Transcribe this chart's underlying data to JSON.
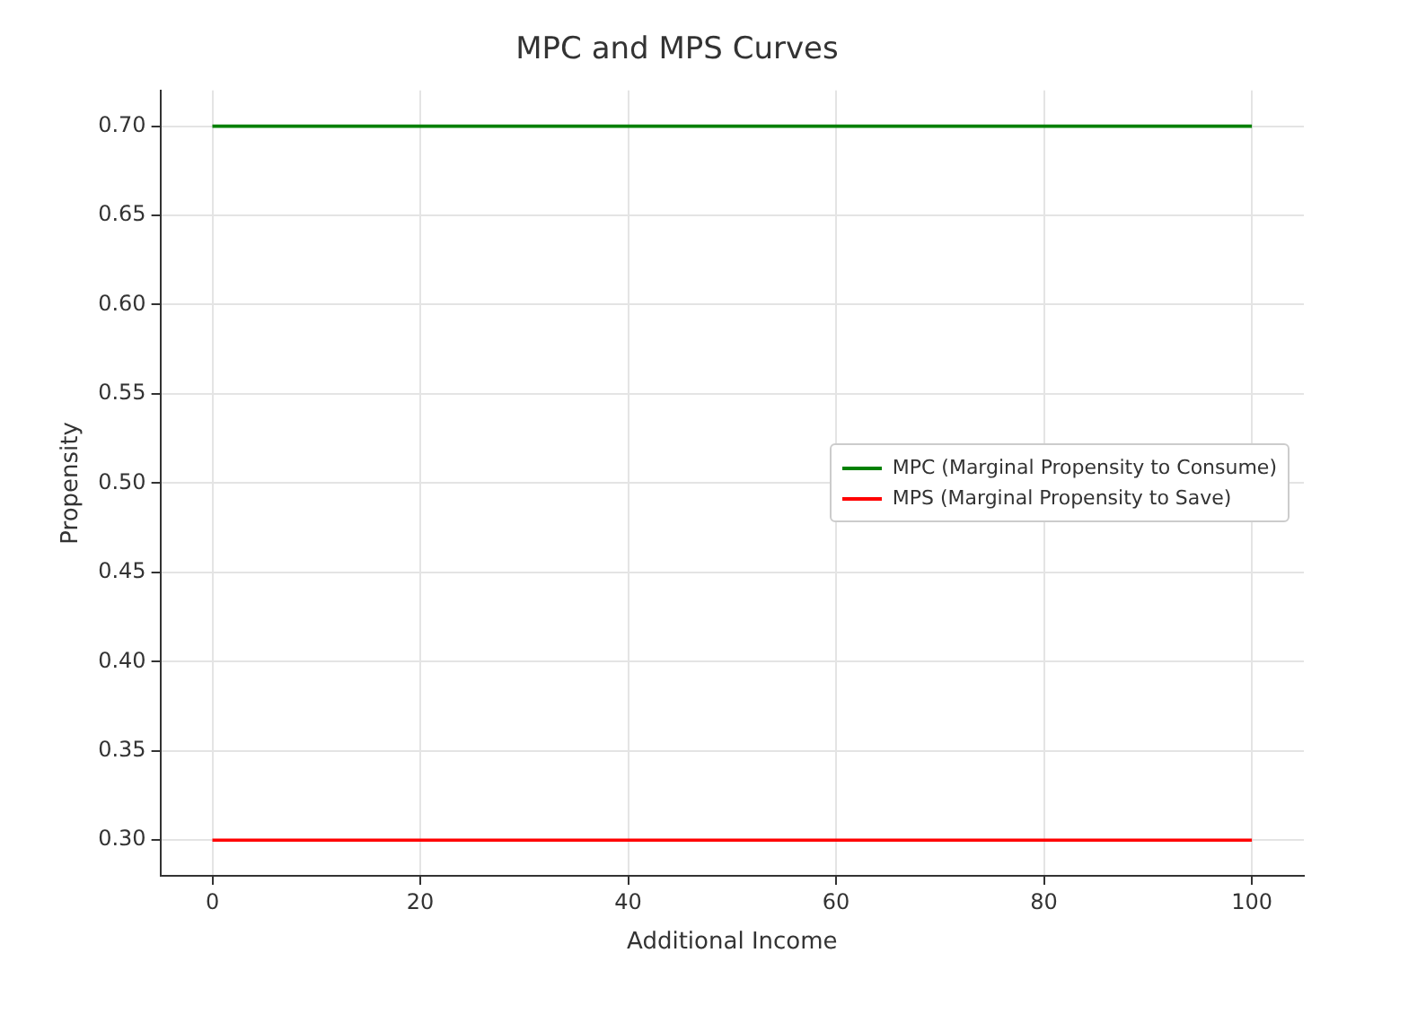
{
  "chart_data": {
    "type": "line",
    "title": "MPC and MPS Curves",
    "xlabel": "Additional Income",
    "ylabel": "Propensity",
    "x": [
      0,
      100
    ],
    "series": [
      {
        "name": "MPC (Marginal Propensity to Consume)",
        "color": "#008000",
        "values": [
          0.7,
          0.7
        ]
      },
      {
        "name": "MPS (Marginal Propensity to Save)",
        "color": "#ff0000",
        "values": [
          0.3,
          0.3
        ]
      }
    ],
    "xlim": [
      -5,
      105
    ],
    "xticks": [
      0,
      20,
      40,
      60,
      80,
      100
    ],
    "ylim": [
      0.28,
      0.72
    ],
    "yticks": [
      {
        "value": 0.3,
        "label": "0.30"
      },
      {
        "value": 0.35,
        "label": "0.35"
      },
      {
        "value": 0.4,
        "label": "0.40"
      },
      {
        "value": 0.45,
        "label": "0.45"
      },
      {
        "value": 0.5,
        "label": "0.50"
      },
      {
        "value": 0.55,
        "label": "0.55"
      },
      {
        "value": 0.6,
        "label": "0.60"
      },
      {
        "value": 0.65,
        "label": "0.65"
      },
      {
        "value": 0.7,
        "label": "0.70"
      }
    ],
    "grid": true,
    "legend": "right",
    "marker": "none",
    "line_style": "solid"
  }
}
